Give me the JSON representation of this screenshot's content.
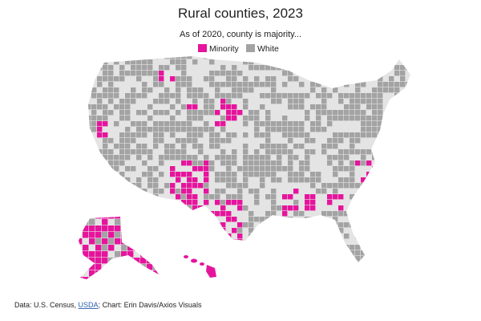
{
  "header": {
    "title": "Rural counties, 2023",
    "subtitle": "As of 2020, county is majority..."
  },
  "legend": [
    {
      "label": "Minority",
      "color": "#e6149c"
    },
    {
      "label": "White",
      "color": "#a3a3a3"
    }
  ],
  "source": {
    "prefix": "Data: U.S. Census, ",
    "link": "USDA",
    "suffix": "; Chart: Erin Davis/Axios Visuals"
  }
}
